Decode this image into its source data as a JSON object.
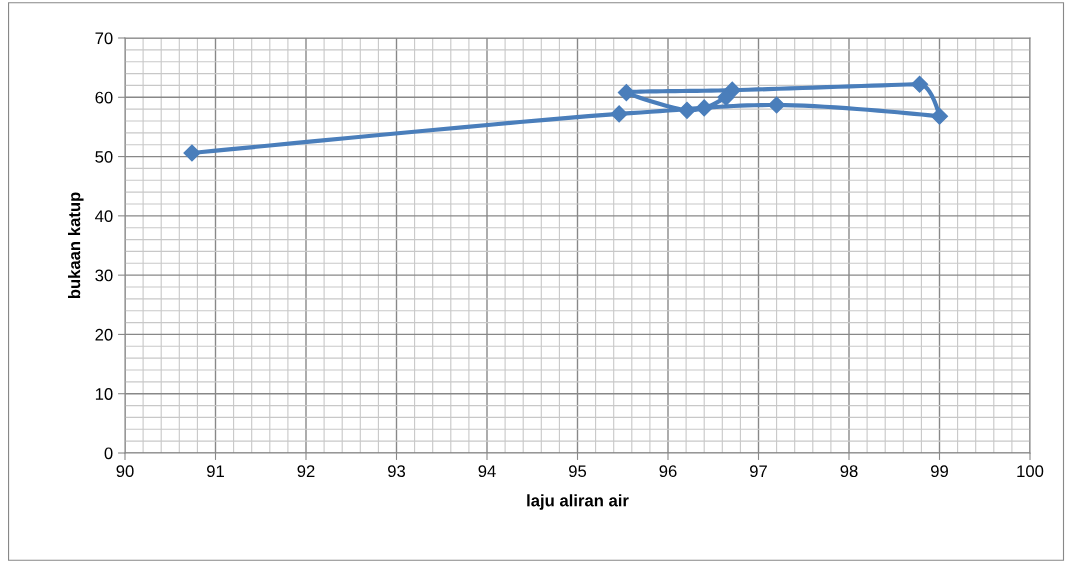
{
  "chart_data": {
    "type": "line",
    "xlabel": "laju aliran air",
    "ylabel": "bukaan katup",
    "x": [
      90.74,
      95.46,
      97.2,
      99.0,
      98.78,
      96.71,
      95.54,
      96.21,
      96.4,
      96.64
    ],
    "series": [
      {
        "color": "#4a7ebb",
        "values": [
          50.6,
          57.2,
          58.7,
          56.8,
          62.2,
          61.2,
          60.8,
          57.8,
          58.2,
          60.0
        ]
      }
    ],
    "xlim": [
      90,
      100
    ],
    "xticks": [
      90,
      91,
      92,
      93,
      94,
      95,
      96,
      97,
      98,
      99,
      100
    ],
    "ylim": [
      0,
      70
    ],
    "yticks": [
      0,
      10,
      20,
      30,
      40,
      50,
      60,
      70
    ],
    "grid": true,
    "marker": "diamond",
    "line_style": "solid",
    "legend": false
  }
}
